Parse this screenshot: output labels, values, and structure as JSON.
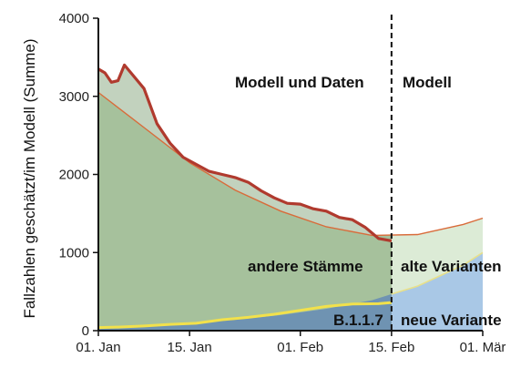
{
  "chart_data": {
    "type": "area",
    "title": "",
    "ylabel": "Fallzahlen geschätzt/im Modell (Summe)",
    "xlabel": "",
    "ylim": [
      0,
      4000
    ],
    "yticks": [
      0,
      1000,
      2000,
      3000,
      4000
    ],
    "xlim": [
      "2021-01-01",
      "2021-03-01"
    ],
    "xticks": [
      {
        "date": "2021-01-01",
        "label": "01. Jan"
      },
      {
        "date": "2021-01-15",
        "label": "15. Jan"
      },
      {
        "date": "2021-02-01",
        "label": "01. Feb"
      },
      {
        "date": "2021-02-15",
        "label": "15. Feb"
      },
      {
        "date": "2021-03-01",
        "label": "01. Mär"
      }
    ],
    "divider_date": "2021-02-15",
    "grid": false,
    "annotations": {
      "data_region": "Modell und Daten",
      "model_region": "Modell",
      "others": "andere Stämme",
      "old_variants": "alte Varianten",
      "b117": "B.1.1.7",
      "new_variant": "neue Variante"
    },
    "series": [
      {
        "name": "",
        "style": "thick line",
        "color": "#b03a2e",
        "x": [
          "2021-01-01",
          "2021-01-02",
          "2021-01-03",
          "2021-01-04",
          "2021-01-05",
          "2021-01-06",
          "2021-01-08",
          "2021-01-10",
          "2021-01-12",
          "2021-01-14",
          "2021-01-16",
          "2021-01-18",
          "2021-01-20",
          "2021-01-22",
          "2021-01-24",
          "2021-01-26",
          "2021-01-28",
          "2021-01-30",
          "2021-02-01",
          "2021-02-03",
          "2021-02-05",
          "2021-02-07",
          "2021-02-09",
          "2021-02-11",
          "2021-02-13",
          "2021-02-15"
        ],
        "values": [
          3350,
          3300,
          3180,
          3200,
          3400,
          3300,
          3100,
          2650,
          2400,
          2220,
          2130,
          2040,
          2000,
          1960,
          1900,
          1790,
          1700,
          1630,
          1620,
          1560,
          1530,
          1450,
          1420,
          1320,
          1180,
          1150
        ]
      },
      {
        "name": "",
        "style": "thin line (model total)",
        "color": "#d96b3a",
        "x": [
          "2021-01-01",
          "2021-01-08",
          "2021-01-15",
          "2021-01-22",
          "2021-01-29",
          "2021-02-05",
          "2021-02-12",
          "2021-02-19",
          "2021-02-26",
          "2021-03-01"
        ],
        "values": [
          3050,
          2600,
          2150,
          1800,
          1530,
          1330,
          1220,
          1230,
          1360,
          1440
        ]
      },
      {
        "name": "B.1.1.7",
        "style": "yellow line (data)",
        "color": "#f2e14b",
        "x": [
          "2021-01-01",
          "2021-01-04",
          "2021-01-08",
          "2021-01-12",
          "2021-01-16",
          "2021-01-20",
          "2021-01-24",
          "2021-01-28",
          "2021-02-01",
          "2021-02-05",
          "2021-02-09",
          "2021-02-13",
          "2021-02-15"
        ],
        "values": [
          40,
          45,
          60,
          80,
          95,
          140,
          170,
          210,
          260,
          310,
          340,
          345,
          360
        ]
      },
      {
        "name": "neue Variante",
        "style": "model area",
        "color": "#a9c8e6",
        "x": [
          "2021-01-01",
          "2021-01-08",
          "2021-01-15",
          "2021-01-22",
          "2021-01-29",
          "2021-02-05",
          "2021-02-12",
          "2021-02-19",
          "2021-02-26",
          "2021-03-01"
        ],
        "values": [
          40,
          60,
          95,
          140,
          200,
          280,
          390,
          570,
          840,
          1000
        ]
      }
    ]
  }
}
